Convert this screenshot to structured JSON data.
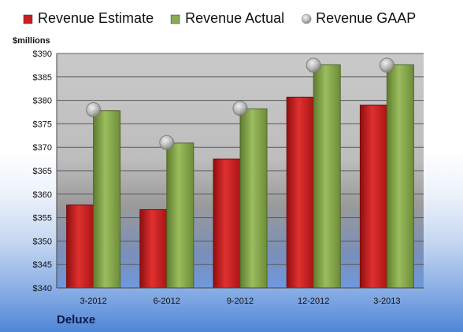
{
  "company": "Deluxe",
  "chart_data": {
    "type": "bar",
    "y_unit_label": "$millions",
    "categories": [
      "3-2012",
      "6-2012",
      "9-2012",
      "12-2012",
      "3-2013"
    ],
    "series": [
      {
        "name": "Revenue Estimate",
        "kind": "bar",
        "color": "#cc1f1f",
        "values": [
          357.7,
          356.7,
          367.5,
          380.7,
          379.0
        ]
      },
      {
        "name": "Revenue Actual",
        "kind": "bar",
        "color": "#8cab52",
        "values": [
          377.8,
          370.9,
          378.2,
          387.6,
          387.6
        ]
      },
      {
        "name": "Revenue GAAP",
        "kind": "marker",
        "color": "#b8b8b8",
        "values": [
          378.0,
          371.0,
          378.3,
          387.5,
          387.5
        ]
      }
    ],
    "ylim": [
      340,
      390
    ],
    "yticks": [
      340,
      345,
      350,
      355,
      360,
      365,
      370,
      375,
      380,
      385,
      390
    ],
    "ytick_labels": [
      "$340",
      "$345",
      "$350",
      "$355",
      "$360",
      "$365",
      "$370",
      "$375",
      "$380",
      "$385",
      "$390"
    ],
    "grid": true,
    "legend_position": "top"
  }
}
